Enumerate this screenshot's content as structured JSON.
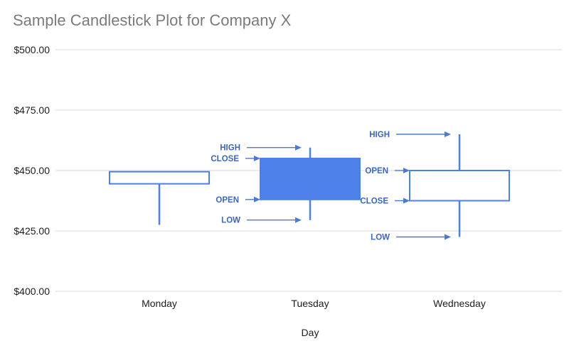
{
  "title": "Sample Candlestick Plot for Company X",
  "colors": {
    "title_text": "#7b7b7b",
    "axis_text": "#1e1e1e",
    "gridline": "#d8d8d8",
    "candle": "#4d80e8",
    "candle_hollow_fill": "#ffffff",
    "annotation_text": "#3c66c0",
    "annotation_arrow": "#4a7ad2",
    "background": "#ffffff"
  },
  "chart_data": {
    "type": "candlestick",
    "title": "Sample Candlestick Plot for Company X",
    "xlabel": "Day",
    "ylabel": "",
    "ylim": [
      400,
      500
    ],
    "grid": true,
    "legend": "none",
    "y_ticks": [
      {
        "label": "$500.00",
        "value": 500
      },
      {
        "label": "$475.00",
        "value": 475
      },
      {
        "label": "$450.00",
        "value": 450
      },
      {
        "label": "$425.00",
        "value": 425
      },
      {
        "label": "$400.00",
        "value": 400
      }
    ],
    "categories": [
      "Monday",
      "Tuesday",
      "Wednesday"
    ],
    "series": [
      {
        "day": "Monday",
        "open": 449.5,
        "high": 449.5,
        "low": 427.5,
        "close": 444.5,
        "filled": false
      },
      {
        "day": "Tuesday",
        "open": 438,
        "high": 459.5,
        "low": 429.5,
        "close": 455,
        "filled": true
      },
      {
        "day": "Wednesday",
        "open": 450,
        "high": 465,
        "low": 422.5,
        "close": 437.5,
        "filled": false
      }
    ],
    "annotations": [
      {
        "candle": "Tuesday",
        "label": "HIGH",
        "anchor": "high"
      },
      {
        "candle": "Tuesday",
        "label": "CLOSE",
        "anchor": "box-top"
      },
      {
        "candle": "Tuesday",
        "label": "OPEN",
        "anchor": "box-bottom"
      },
      {
        "candle": "Tuesday",
        "label": "LOW",
        "anchor": "low"
      },
      {
        "candle": "Wednesday",
        "label": "HIGH",
        "anchor": "high"
      },
      {
        "candle": "Wednesday",
        "label": "OPEN",
        "anchor": "box-top"
      },
      {
        "candle": "Wednesday",
        "label": "CLOSE",
        "anchor": "box-bottom"
      },
      {
        "candle": "Wednesday",
        "label": "LOW",
        "anchor": "low"
      }
    ]
  }
}
